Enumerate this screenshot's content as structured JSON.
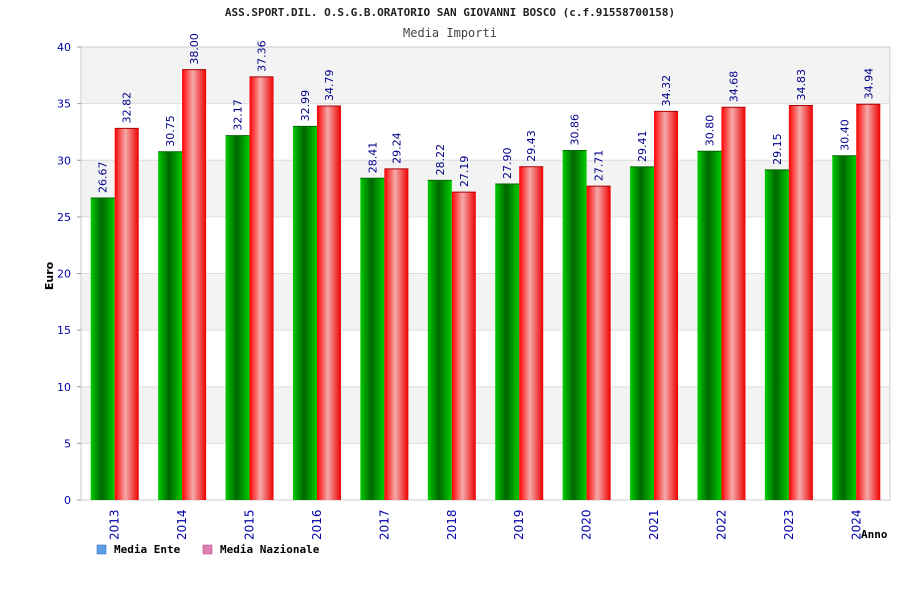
{
  "chart_data": {
    "type": "bar",
    "title": "ASS.SPORT.DIL. O.S.G.B.ORATORIO SAN GIOVANNI BOSCO (c.f.91558700158)",
    "subtitle": "Media Importi",
    "ylabel": "Euro",
    "xlabel": "Anno",
    "ylim": [
      0,
      40
    ],
    "yticks": [
      0,
      5,
      10,
      15,
      20,
      25,
      30,
      35,
      40
    ],
    "grid": true,
    "legend_position": "bottom-left",
    "categories": [
      "2013",
      "2014",
      "2015",
      "2016",
      "2017",
      "2018",
      "2019",
      "2020",
      "2021",
      "2022",
      "2023",
      "2024"
    ],
    "series": [
      {
        "name": "Media Ente",
        "color": "#00a000",
        "legend_color": "#5b9ee8",
        "values": [
          26.67,
          30.75,
          32.17,
          32.99,
          28.41,
          28.22,
          27.9,
          30.86,
          29.41,
          30.8,
          29.15,
          30.4
        ],
        "labels": [
          "26.67",
          "30.75",
          "32.17",
          "32.99",
          "28.41",
          "28.22",
          "27.90",
          "30.86",
          "29.41",
          "30.80",
          "29.15",
          "30.40"
        ]
      },
      {
        "name": "Media Nazionale",
        "color": "#ee1122",
        "legend_color": "#e07fb5",
        "values": [
          32.82,
          38.0,
          37.36,
          34.79,
          29.24,
          27.19,
          29.43,
          27.71,
          34.32,
          34.68,
          34.83,
          34.94
        ],
        "labels": [
          "32.82",
          "38.00",
          "37.36",
          "34.79",
          "29.24",
          "27.19",
          "29.43",
          "27.71",
          "34.32",
          "34.68",
          "34.83",
          "34.94"
        ]
      }
    ]
  }
}
